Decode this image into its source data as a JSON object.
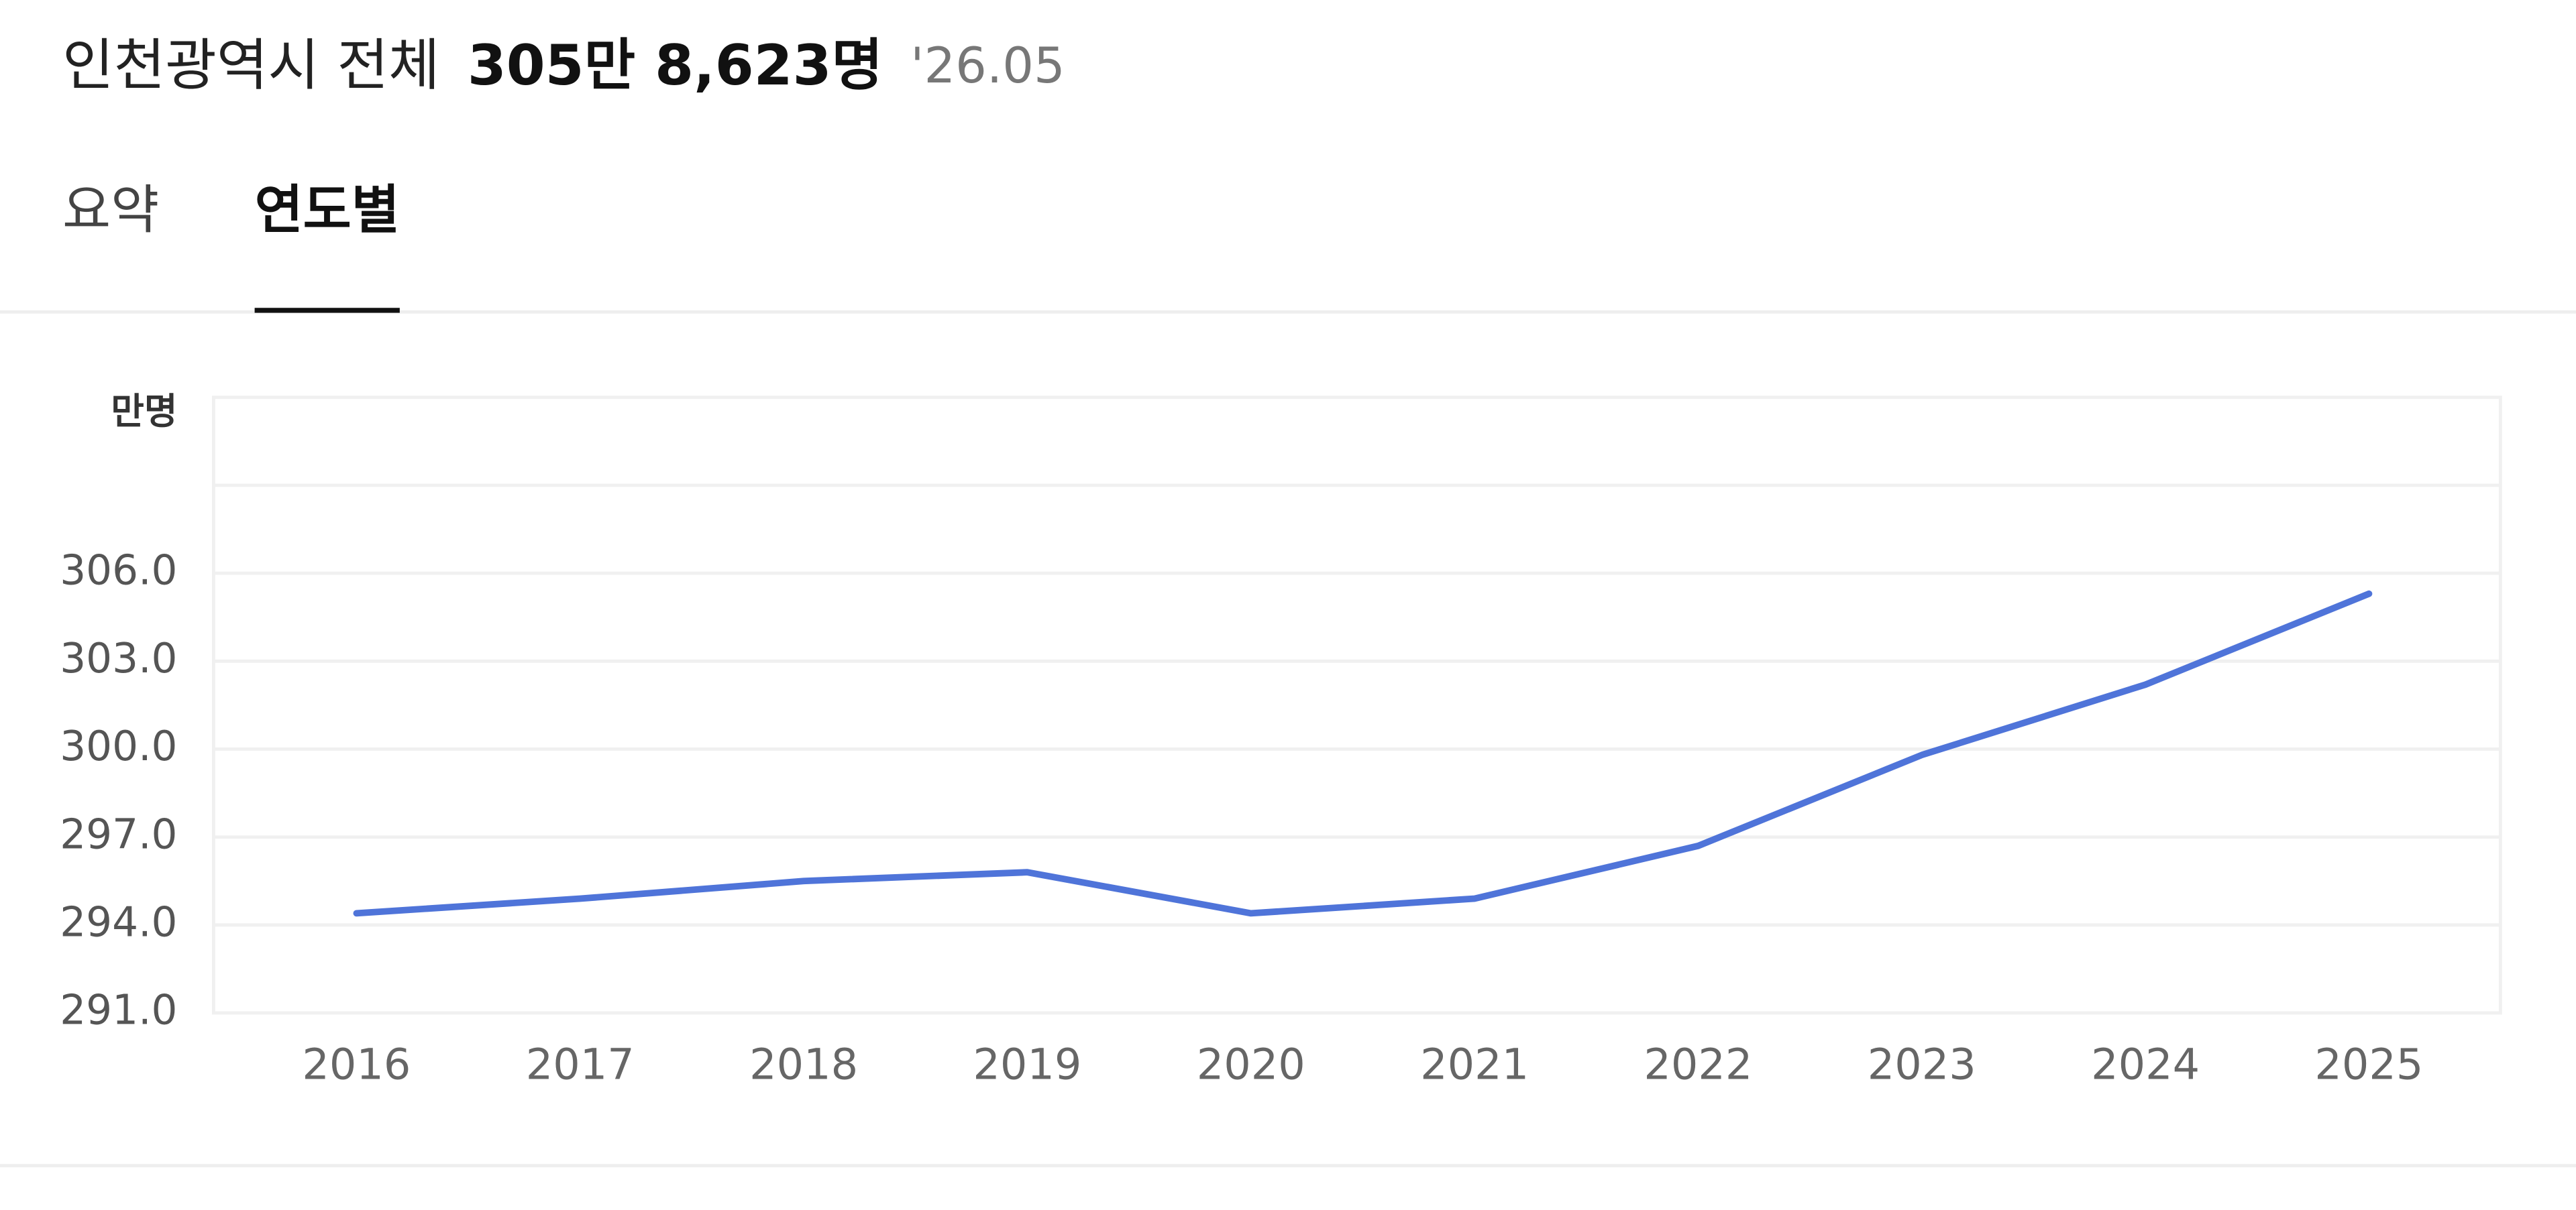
{
  "header": {
    "title": "인천광역시 전체",
    "total": "305만 8,623명",
    "date": "'26.05"
  },
  "tabs": [
    "요약",
    "연도별"
  ],
  "active_tab": 1,
  "chart_data": {
    "type": "line",
    "y_unit": "만명",
    "categories": [
      "2016",
      "2017",
      "2018",
      "2019",
      "2020",
      "2021",
      "2022",
      "2023",
      "2024",
      "2025"
    ],
    "values": [
      294.4,
      294.9,
      295.5,
      295.8,
      294.4,
      294.9,
      296.7,
      299.8,
      302.2,
      305.3
    ],
    "color": "#4f74d9",
    "ylim": [
      291,
      312
    ],
    "yticks": [
      {
        "value": 291,
        "label": "291.0"
      },
      {
        "value": 294,
        "label": "294.0"
      },
      {
        "value": 297,
        "label": "297.0"
      },
      {
        "value": 300,
        "label": "300.0"
      },
      {
        "value": 303,
        "label": "303.0"
      },
      {
        "value": 306,
        "label": "306.0"
      },
      {
        "value": 309,
        "label": null
      }
    ],
    "grid": true
  }
}
